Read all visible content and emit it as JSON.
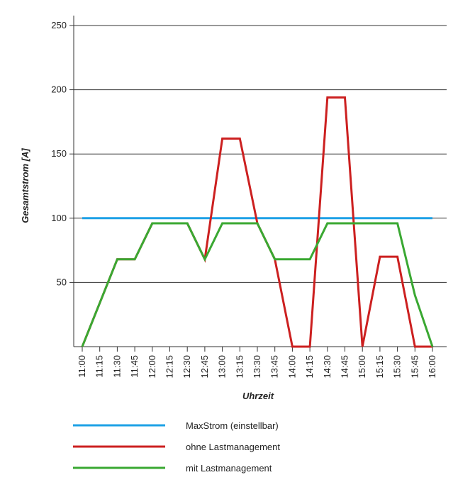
{
  "chart_data": {
    "type": "line",
    "xlabel": "Uhrzeit",
    "ylabel": "Gesamtstrom [A]",
    "ylim": [
      0,
      250
    ],
    "yticks": [
      50,
      100,
      150,
      200,
      250
    ],
    "grid": "horizontal",
    "legend": "bottom",
    "categories": [
      "11:00",
      "11:15",
      "11:30",
      "11:45",
      "12:00",
      "12:15",
      "12:30",
      "12:45",
      "13:00",
      "13:15",
      "13:30",
      "13:45",
      "14:00",
      "14:15",
      "14:30",
      "14:45",
      "15:00",
      "15:15",
      "15:30",
      "15:45",
      "16:00"
    ],
    "series": [
      {
        "name": "MaxStrom (einstellbar)",
        "color": "#1ea1e6",
        "values": [
          100,
          100,
          100,
          100,
          100,
          100,
          100,
          100,
          100,
          100,
          100,
          100,
          100,
          100,
          100,
          100,
          100,
          100,
          100,
          100,
          100
        ]
      },
      {
        "name": "ohne Lastmanagement",
        "color": "#cc2020",
        "values": [
          0,
          34,
          68,
          68,
          96,
          96,
          96,
          68,
          162,
          162,
          96,
          68,
          0,
          0,
          194,
          194,
          0,
          70,
          70,
          0,
          0
        ]
      },
      {
        "name": "mit Lastmanagement",
        "color": "#3aa832",
        "values": [
          0,
          34,
          68,
          68,
          96,
          96,
          96,
          68,
          96,
          96,
          96,
          68,
          68,
          68,
          96,
          96,
          96,
          96,
          96,
          40,
          0
        ]
      }
    ]
  }
}
